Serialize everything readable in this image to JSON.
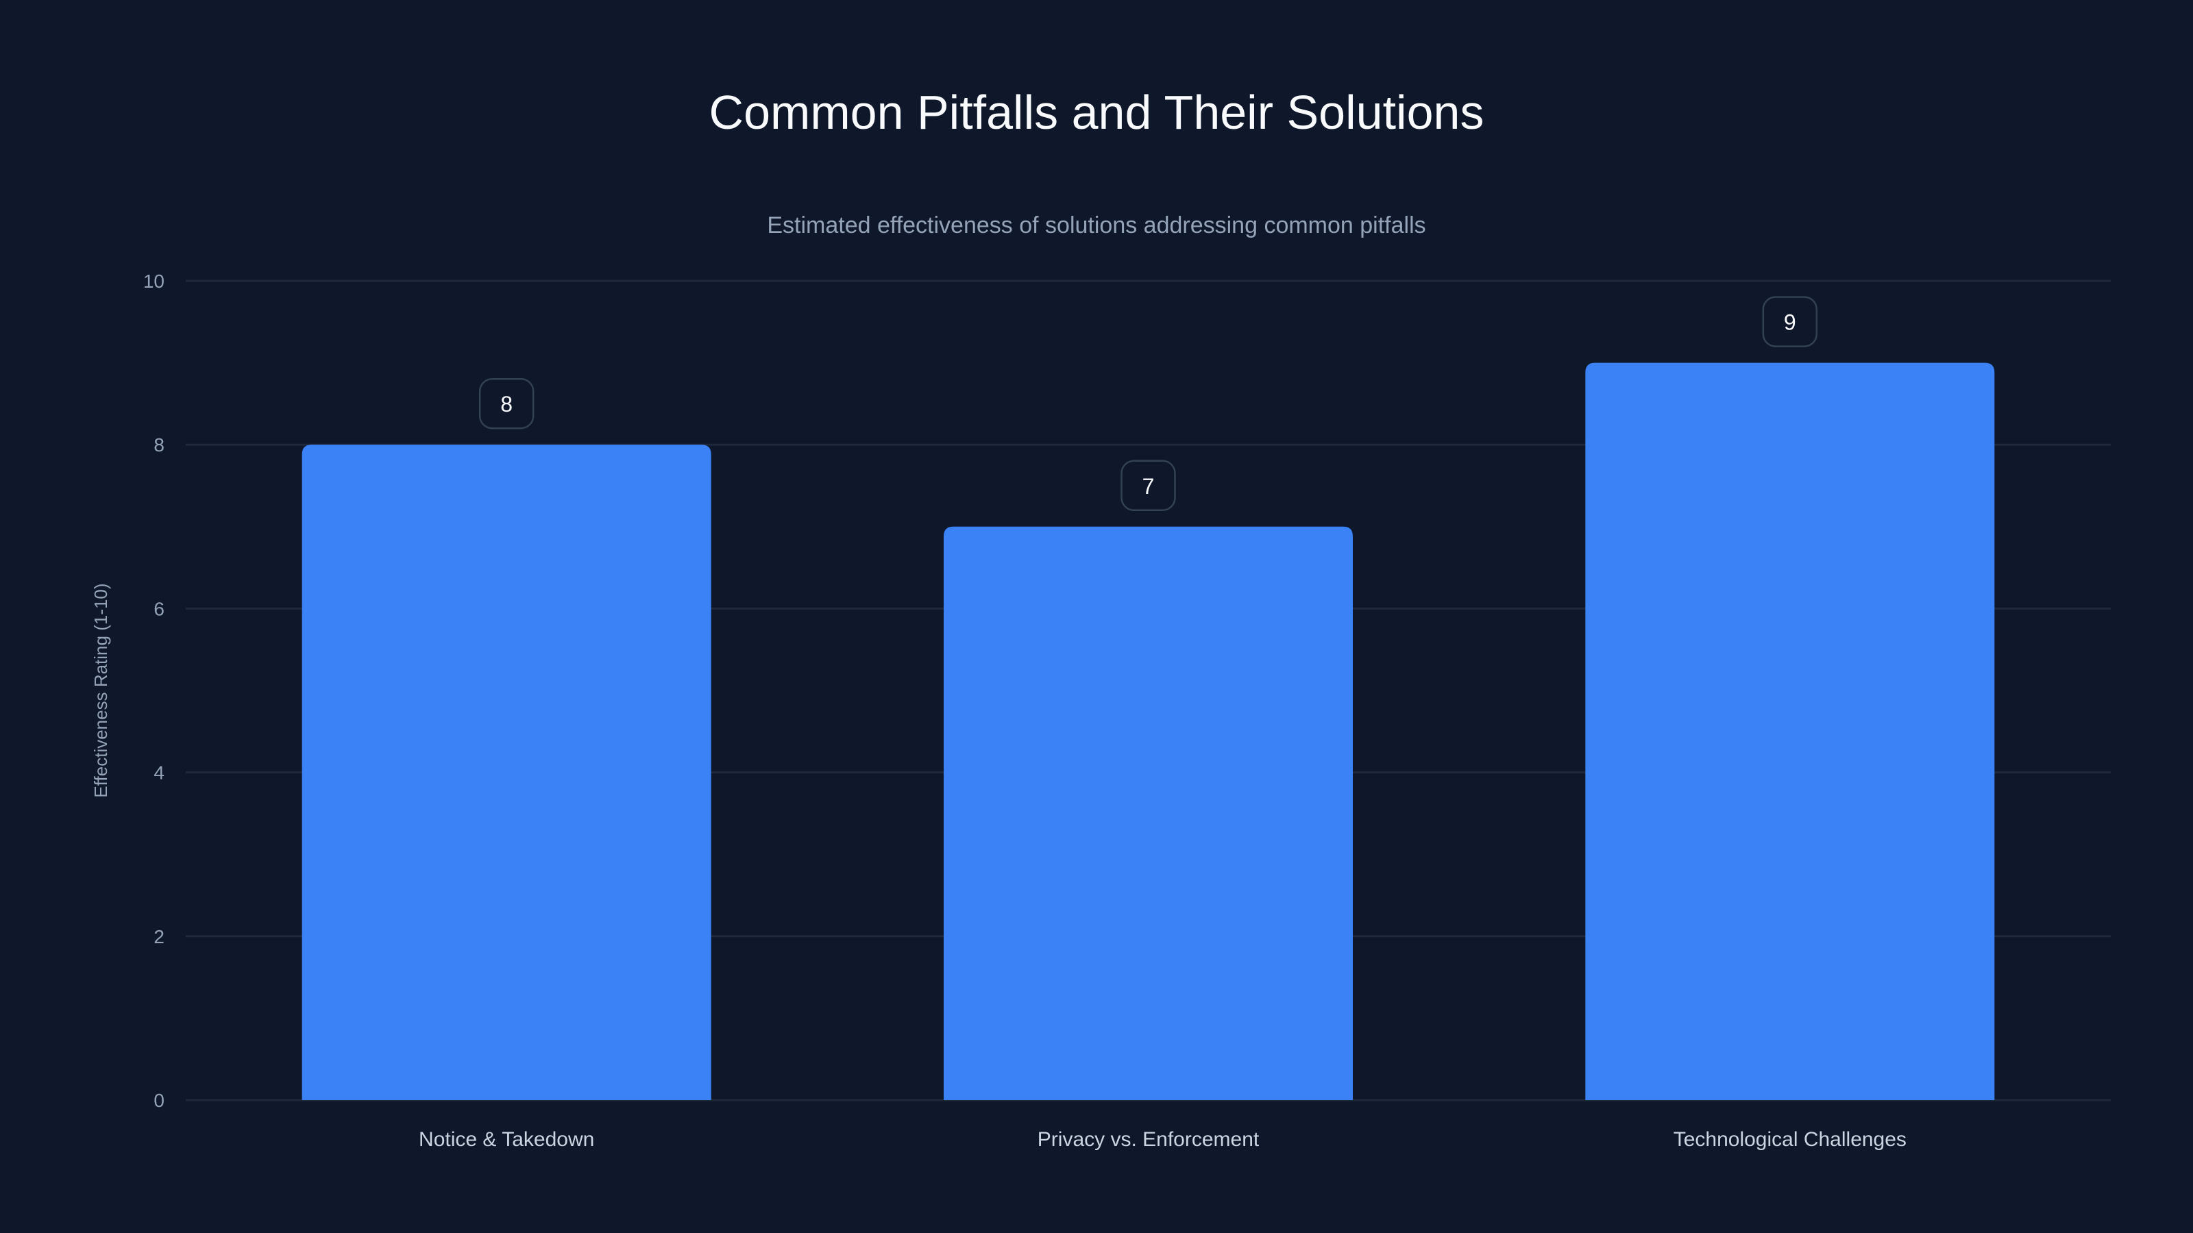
{
  "chart_data": {
    "type": "bar",
    "title": "Common Pitfalls and Their Solutions",
    "subtitle": "Estimated effectiveness of solutions addressing common pitfalls",
    "xlabel": "",
    "ylabel": "Effectiveness Rating (1-10)",
    "categories": [
      "Notice & Takedown",
      "Privacy vs. Enforcement",
      "Technological Challenges"
    ],
    "values": [
      8,
      7,
      9
    ],
    "ylim": [
      0,
      10
    ],
    "yticks": [
      0,
      2,
      4,
      6,
      8,
      10
    ],
    "grid": true,
    "legend": "none",
    "colors": {
      "background": "#0f172a",
      "bar": "#3b82f6",
      "grid": "#1e293b"
    }
  }
}
